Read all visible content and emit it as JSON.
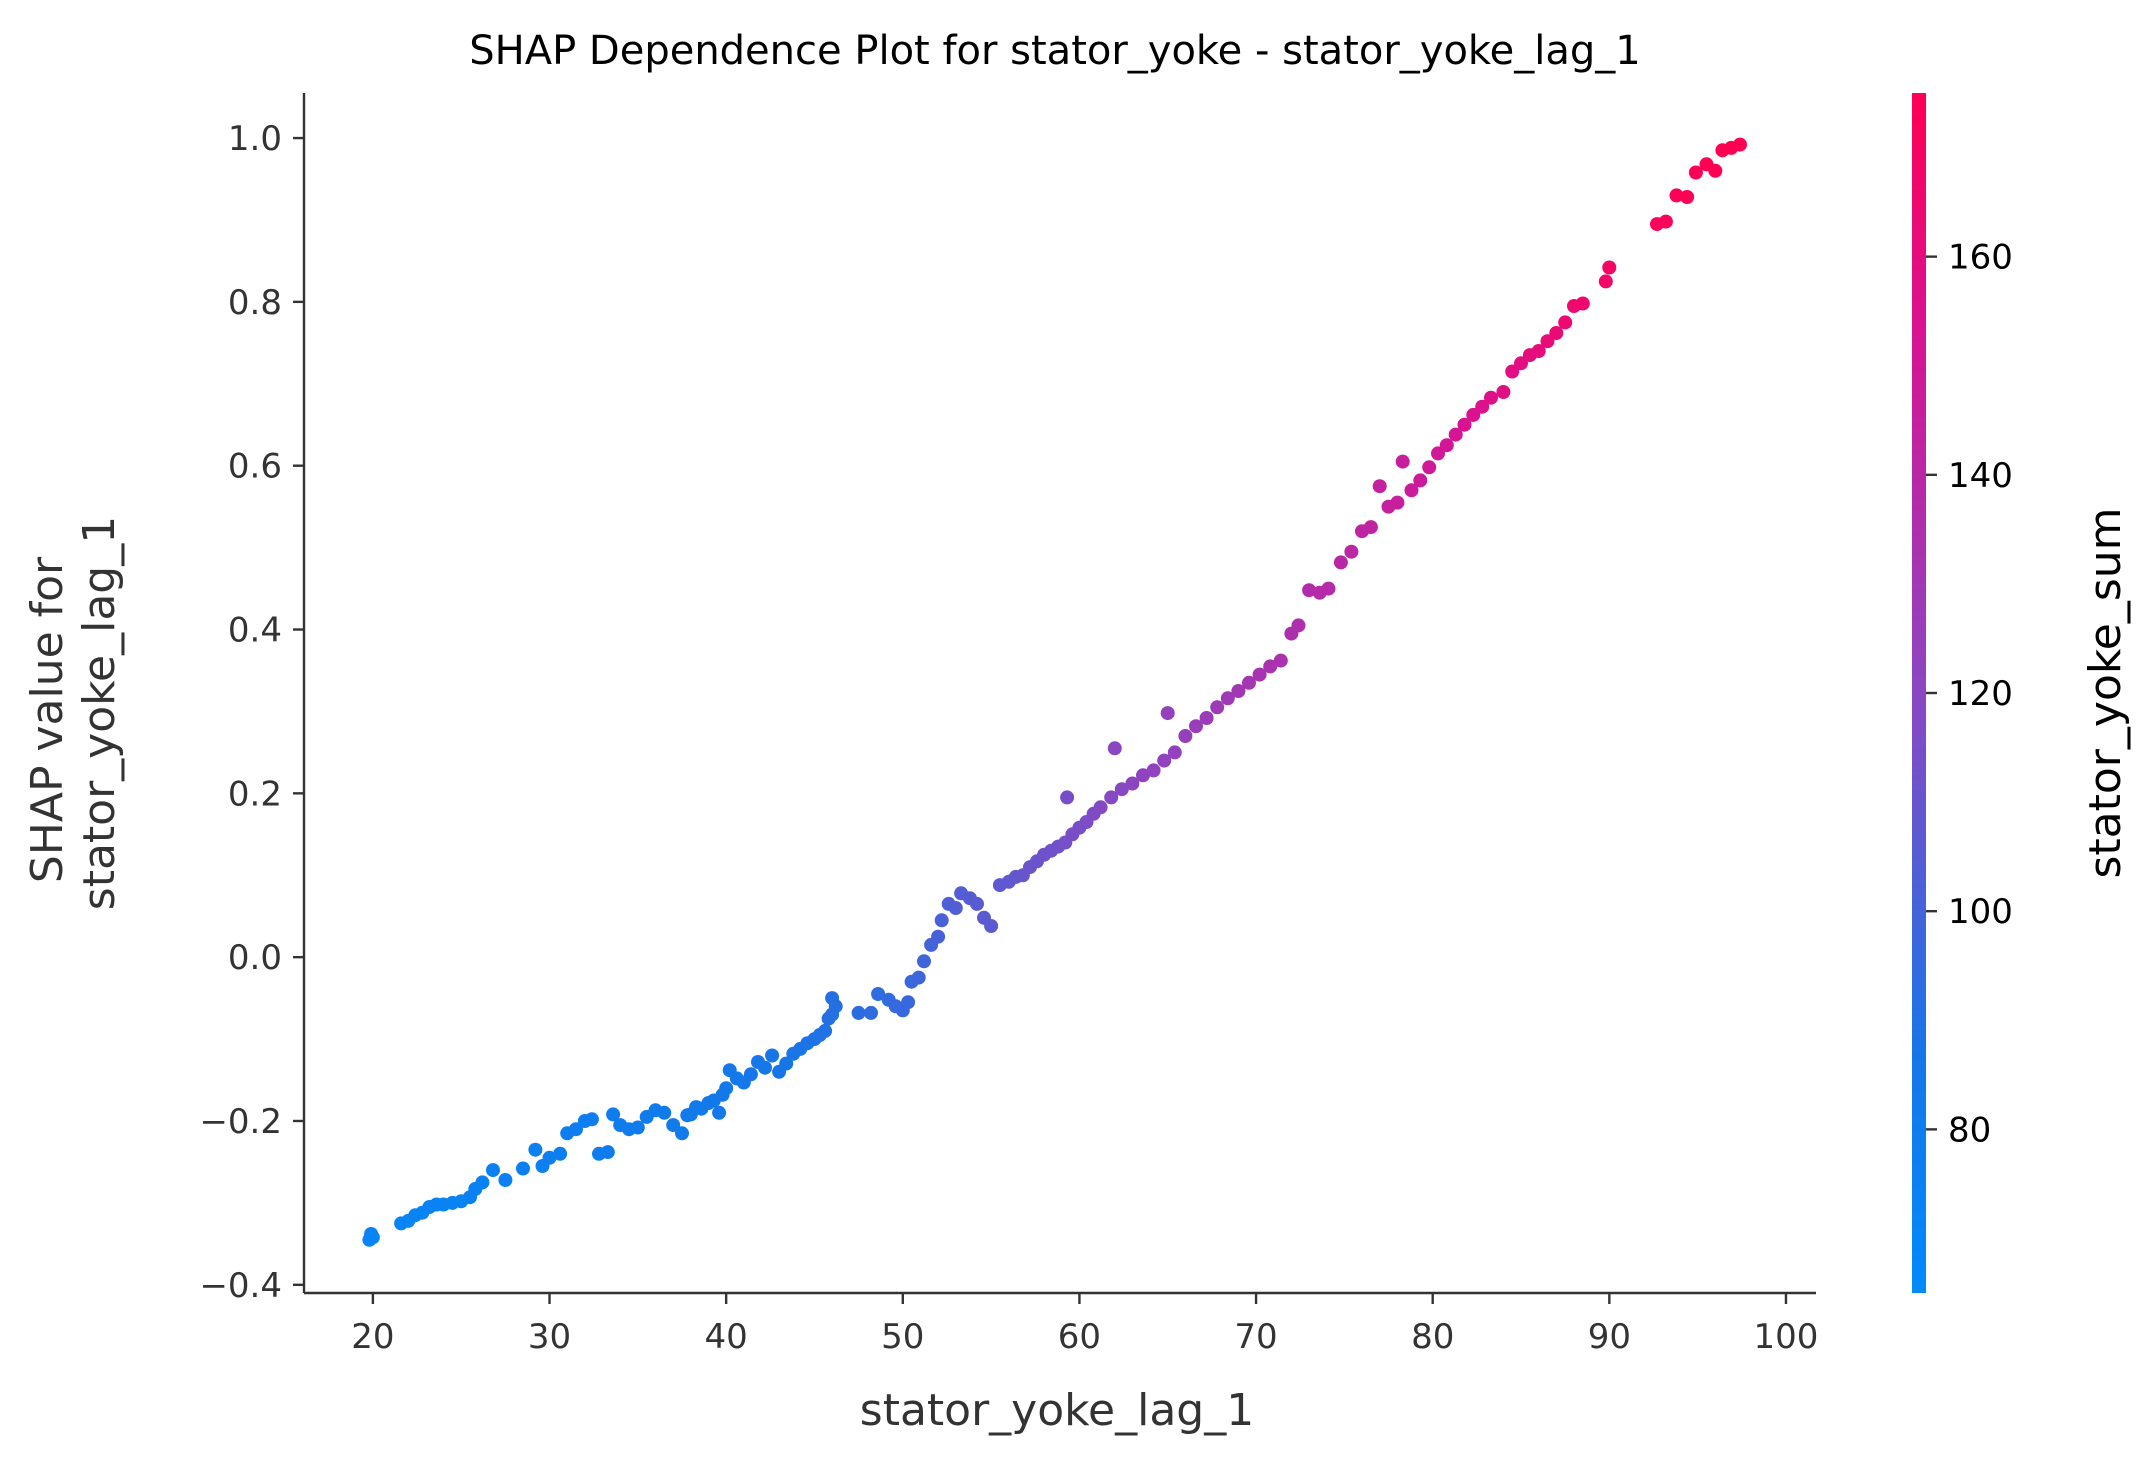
{
  "chart_data": {
    "type": "scatter",
    "title": "SHAP Dependence Plot for stator_yoke - stator_yoke_lag_1",
    "xlabel": "stator_yoke_lag_1",
    "ylabel_lines": [
      "SHAP value for",
      "stator_yoke_lag_1"
    ],
    "xlim": [
      16.1,
      101.7
    ],
    "ylim": [
      -0.41,
      1.055
    ],
    "xticks": [
      20,
      30,
      40,
      50,
      60,
      70,
      80,
      90,
      100
    ],
    "xtick_labels": [
      "20",
      "30",
      "40",
      "50",
      "60",
      "70",
      "80",
      "90",
      "100"
    ],
    "yticks": [
      -0.4,
      -0.2,
      0.0,
      0.2,
      0.4,
      0.6,
      0.8,
      1.0
    ],
    "ytick_labels": [
      "−0.4",
      "−0.2",
      "0.0",
      "0.2",
      "0.4",
      "0.6",
      "0.8",
      "1.0"
    ],
    "grid": false,
    "colorbar": {
      "label": "stator_yoke_sum",
      "range": [
        65,
        175
      ],
      "ticks": [
        80,
        100,
        120,
        140,
        160
      ],
      "tick_labels": [
        "80",
        "100",
        "120",
        "140",
        "160"
      ],
      "color_low": "#008afb",
      "color_mid": "#7c52c4",
      "color_high": "#ff0052"
    },
    "series": [
      {
        "points": [
          [
            19.8,
            -0.345
          ],
          [
            19.9,
            -0.338
          ],
          [
            20.0,
            -0.342
          ],
          [
            21.6,
            -0.325
          ],
          [
            22.0,
            -0.322
          ],
          [
            22.4,
            -0.315
          ],
          [
            22.8,
            -0.312
          ],
          [
            23.2,
            -0.305
          ],
          [
            23.6,
            -0.302
          ],
          [
            24.0,
            -0.302
          ],
          [
            24.5,
            -0.3
          ],
          [
            25.0,
            -0.298
          ],
          [
            25.5,
            -0.293
          ],
          [
            25.8,
            -0.283
          ],
          [
            26.2,
            -0.275
          ],
          [
            26.8,
            -0.26
          ],
          [
            27.5,
            -0.272
          ],
          [
            28.5,
            -0.258
          ],
          [
            29.2,
            -0.235
          ],
          [
            29.6,
            -0.255
          ],
          [
            30.0,
            -0.245
          ],
          [
            30.6,
            -0.24
          ],
          [
            31.0,
            -0.215
          ],
          [
            31.5,
            -0.21
          ],
          [
            32.0,
            -0.2
          ],
          [
            32.4,
            -0.198
          ],
          [
            32.8,
            -0.24
          ],
          [
            33.3,
            -0.238
          ],
          [
            33.6,
            -0.192
          ],
          [
            34.0,
            -0.205
          ],
          [
            34.5,
            -0.21
          ],
          [
            35.0,
            -0.208
          ],
          [
            35.5,
            -0.195
          ],
          [
            36.0,
            -0.187
          ],
          [
            36.5,
            -0.19
          ],
          [
            37.0,
            -0.205
          ],
          [
            37.5,
            -0.215
          ],
          [
            37.8,
            -0.193
          ],
          [
            38.0,
            -0.192
          ],
          [
            38.3,
            -0.183
          ],
          [
            38.6,
            -0.185
          ],
          [
            39.0,
            -0.178
          ],
          [
            39.3,
            -0.175
          ],
          [
            39.6,
            -0.19
          ],
          [
            39.8,
            -0.168
          ],
          [
            40.0,
            -0.16
          ],
          [
            40.2,
            -0.138
          ],
          [
            40.6,
            -0.148
          ],
          [
            41.0,
            -0.153
          ],
          [
            41.4,
            -0.143
          ],
          [
            41.8,
            -0.128
          ],
          [
            42.2,
            -0.135
          ],
          [
            42.6,
            -0.12
          ],
          [
            43.0,
            -0.14
          ],
          [
            43.4,
            -0.13
          ],
          [
            43.8,
            -0.118
          ],
          [
            44.2,
            -0.112
          ],
          [
            44.6,
            -0.105
          ],
          [
            45.0,
            -0.1
          ],
          [
            45.3,
            -0.095
          ],
          [
            45.6,
            -0.09
          ],
          [
            45.8,
            -0.075
          ],
          [
            46.0,
            -0.07
          ],
          [
            46.2,
            -0.06
          ],
          [
            46.0,
            -0.05
          ],
          [
            47.5,
            -0.068
          ],
          [
            48.2,
            -0.068
          ],
          [
            48.6,
            -0.045
          ],
          [
            49.2,
            -0.052
          ],
          [
            49.6,
            -0.06
          ],
          [
            50.0,
            -0.065
          ],
          [
            50.3,
            -0.055
          ],
          [
            50.5,
            -0.03
          ],
          [
            50.9,
            -0.025
          ],
          [
            51.2,
            -0.005
          ],
          [
            51.6,
            0.015
          ],
          [
            52.0,
            0.025
          ],
          [
            52.2,
            0.045
          ],
          [
            52.6,
            0.065
          ],
          [
            53.0,
            0.06
          ],
          [
            53.3,
            0.078
          ],
          [
            53.8,
            0.072
          ],
          [
            54.2,
            0.065
          ],
          [
            54.6,
            0.048
          ],
          [
            55.0,
            0.038
          ],
          [
            55.5,
            0.088
          ],
          [
            56.0,
            0.092
          ],
          [
            56.4,
            0.098
          ],
          [
            56.8,
            0.1
          ],
          [
            57.2,
            0.11
          ],
          [
            57.6,
            0.117
          ],
          [
            58.0,
            0.125
          ],
          [
            58.4,
            0.13
          ],
          [
            58.8,
            0.135
          ],
          [
            59.2,
            0.14
          ],
          [
            59.6,
            0.15
          ],
          [
            59.3,
            0.195
          ],
          [
            60.0,
            0.158
          ],
          [
            60.4,
            0.165
          ],
          [
            60.8,
            0.175
          ],
          [
            61.2,
            0.183
          ],
          [
            61.8,
            0.195
          ],
          [
            62.4,
            0.205
          ],
          [
            62.0,
            0.255
          ],
          [
            63.0,
            0.212
          ],
          [
            63.6,
            0.222
          ],
          [
            64.2,
            0.228
          ],
          [
            64.8,
            0.24
          ],
          [
            65.0,
            0.298
          ],
          [
            65.4,
            0.25
          ],
          [
            66.0,
            0.27
          ],
          [
            66.6,
            0.282
          ],
          [
            67.2,
            0.292
          ],
          [
            67.8,
            0.305
          ],
          [
            68.4,
            0.316
          ],
          [
            69.0,
            0.325
          ],
          [
            69.6,
            0.335
          ],
          [
            70.2,
            0.345
          ],
          [
            70.8,
            0.355
          ],
          [
            71.4,
            0.362
          ],
          [
            72.0,
            0.395
          ],
          [
            72.4,
            0.405
          ],
          [
            73.0,
            0.448
          ],
          [
            73.6,
            0.445
          ],
          [
            74.1,
            0.45
          ],
          [
            74.8,
            0.482
          ],
          [
            75.4,
            0.495
          ],
          [
            76.0,
            0.52
          ],
          [
            76.5,
            0.525
          ],
          [
            77.0,
            0.575
          ],
          [
            77.5,
            0.55
          ],
          [
            78.0,
            0.555
          ],
          [
            78.3,
            0.605
          ],
          [
            78.8,
            0.57
          ],
          [
            79.3,
            0.582
          ],
          [
            79.8,
            0.598
          ],
          [
            80.3,
            0.615
          ],
          [
            80.8,
            0.625
          ],
          [
            81.3,
            0.638
          ],
          [
            81.8,
            0.65
          ],
          [
            82.3,
            0.662
          ],
          [
            82.8,
            0.672
          ],
          [
            83.3,
            0.683
          ],
          [
            84.0,
            0.69
          ],
          [
            84.5,
            0.715
          ],
          [
            85.0,
            0.725
          ],
          [
            85.5,
            0.735
          ],
          [
            86.0,
            0.74
          ],
          [
            86.5,
            0.752
          ],
          [
            87.0,
            0.762
          ],
          [
            87.5,
            0.775
          ],
          [
            88.0,
            0.795
          ],
          [
            88.5,
            0.798
          ],
          [
            89.8,
            0.825
          ],
          [
            90.0,
            0.842
          ],
          [
            92.7,
            0.895
          ],
          [
            93.2,
            0.898
          ],
          [
            93.8,
            0.93
          ],
          [
            94.4,
            0.928
          ],
          [
            94.9,
            0.958
          ],
          [
            95.5,
            0.968
          ],
          [
            96.0,
            0.96
          ],
          [
            96.4,
            0.985
          ],
          [
            96.9,
            0.988
          ],
          [
            97.4,
            0.992
          ]
        ],
        "colors": [
          72,
          72,
          72,
          72,
          72,
          73,
          73,
          73,
          74,
          74,
          74,
          74,
          75,
          75,
          75,
          76,
          76,
          77,
          77,
          77,
          78,
          78,
          78,
          79,
          79,
          79,
          79,
          80,
          80,
          80,
          81,
          81,
          81,
          82,
          82,
          82,
          82,
          82,
          83,
          83,
          83,
          83,
          84,
          84,
          84,
          84,
          85,
          85,
          85,
          86,
          86,
          86,
          87,
          87,
          87,
          88,
          88,
          89,
          89,
          90,
          90,
          91,
          91,
          91,
          91,
          93,
          94,
          94,
          95,
          96,
          96,
          97,
          97,
          98,
          99,
          100,
          101,
          102,
          103,
          104,
          104,
          105,
          106,
          106,
          107,
          108,
          108,
          109,
          110,
          111,
          111,
          112,
          113,
          113,
          114,
          115,
          115,
          115,
          116,
          117,
          118,
          119,
          120,
          120,
          121,
          122,
          123,
          123,
          124,
          124,
          125,
          126,
          127,
          128,
          129,
          130,
          131,
          132,
          133,
          134,
          135,
          135,
          137,
          138,
          138,
          140,
          141,
          142,
          143,
          144,
          145,
          146,
          146,
          147,
          148,
          149,
          150,
          151,
          152,
          153,
          154,
          155,
          156,
          157,
          158,
          159,
          160,
          161,
          162,
          163,
          164,
          165,
          166,
          168,
          169,
          172,
          172,
          173,
          174,
          174,
          175,
          175,
          175,
          175,
          175
        ]
      }
    ]
  }
}
